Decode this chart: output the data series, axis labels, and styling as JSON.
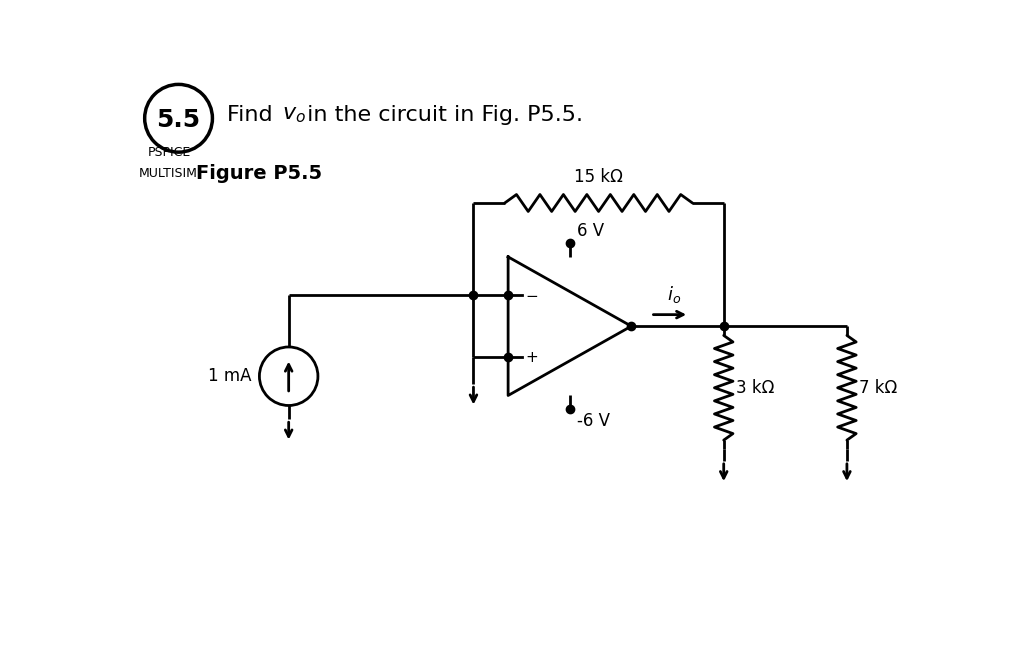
{
  "title_problem": "5.5",
  "title_text_parts": [
    "Find ",
    "v",
    "o",
    " in the circuit in Fig. P5.5."
  ],
  "subtitle_label1": "PSPICE",
  "subtitle_label2": "MULTISIM",
  "subtitle_fig": "Figure P5.5",
  "bg_color": "#ffffff",
  "line_color": "#000000",
  "resistor_15k_label": "15 kΩ",
  "resistor_3k_label": "3 kΩ",
  "resistor_7k_label": "7 kΩ",
  "current_source_label": "1 mA",
  "v_pos_label": "6 V",
  "v_neg_label": "-6 V",
  "io_label": "i",
  "io_sub": "o",
  "dot_size": 6
}
